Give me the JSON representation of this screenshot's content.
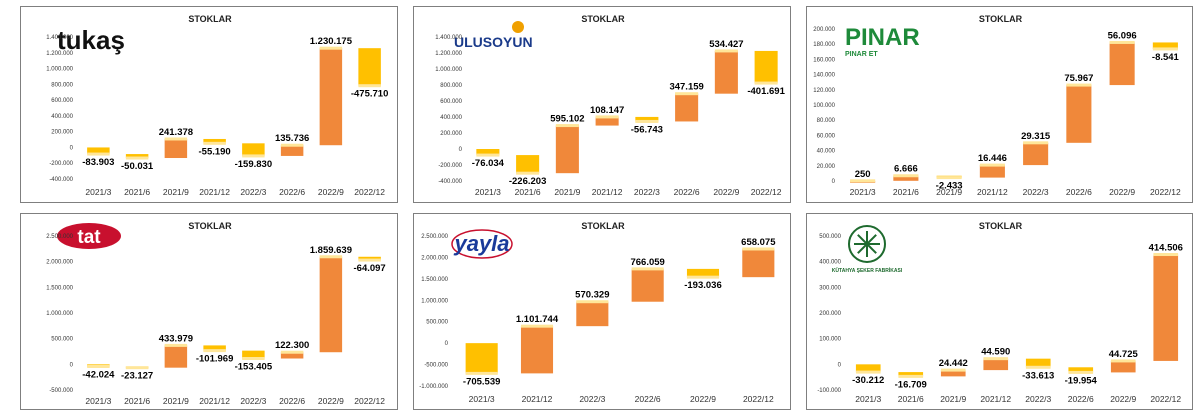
{
  "colors": {
    "up": "#F0883A",
    "down": "#FFC000",
    "cap": "#FFE699",
    "axis": "#BFBFBF"
  },
  "chart_data": [
    {
      "type": "bar",
      "title": "STOKLAR",
      "logo": "tukaş",
      "logo_icon": "tukas-logo-icon",
      "categories": [
        "2021/3",
        "2021/6",
        "2021/9",
        "2021/12",
        "2022/3",
        "2022/6",
        "2022/9",
        "2022/12"
      ],
      "values": [
        -83903,
        -50031,
        241378,
        -55190,
        -159830,
        135736,
        1230175,
        -475710
      ],
      "labels": [
        "-83.903",
        "-50.031",
        "241.378",
        "-55.190",
        "-159.830",
        "135.736",
        "1.230.175",
        "-475.710"
      ],
      "ylim": [
        -400000,
        1400000
      ],
      "yticks": [
        -400000,
        -200000,
        0,
        200000,
        400000,
        600000,
        800000,
        1000000,
        1200000,
        1400000
      ],
      "ytick_labels": [
        "-400.000",
        "-200.000",
        "0",
        "200.000",
        "400.000",
        "600.000",
        "800.000",
        "1.000.000",
        "1.200.000",
        "1.400.000"
      ]
    },
    {
      "type": "bar",
      "title": "STOKLAR",
      "logo": "ULUSOYUN",
      "logo_icon": "ulusoyun-logo-icon",
      "categories": [
        "2021/3",
        "2021/6",
        "2021/9",
        "2021/12",
        "2022/3",
        "2022/6",
        "2022/9",
        "2022/12"
      ],
      "values": [
        -76034,
        -226203,
        595102,
        108147,
        -56743,
        347159,
        534427,
        -401691
      ],
      "labels": [
        "-76.034",
        "-226.203",
        "595.102",
        "108.147",
        "-56.743",
        "347.159",
        "534.427",
        "-401.691"
      ],
      "ylim": [
        -400000,
        1400000
      ],
      "yticks": [
        -400000,
        -200000,
        0,
        200000,
        400000,
        600000,
        800000,
        1000000,
        1200000,
        1400000
      ],
      "ytick_labels": [
        "-400.000",
        "-200.000",
        "0",
        "200.000",
        "400.000",
        "600.000",
        "800.000",
        "1.000.000",
        "1.200.000",
        "1.400.000"
      ]
    },
    {
      "type": "bar",
      "title": "STOKLAR",
      "logo": "PINAR",
      "logo_sub": "PINAR ET",
      "logo_icon": "pinar-logo-icon",
      "categories": [
        "2021/3",
        "2021/6",
        "2021/9",
        "2021/12",
        "2022/3",
        "2022/6",
        "2022/9",
        "2022/12"
      ],
      "values": [
        250,
        6666,
        -2433,
        16446,
        29315,
        75967,
        56096,
        -8541
      ],
      "labels": [
        "250",
        "6.666",
        "-2.433",
        "16.446",
        "29.315",
        "75.967",
        "56.096",
        "-8.541"
      ],
      "ylim": [
        0,
        200000
      ],
      "yticks": [
        0,
        20000,
        40000,
        60000,
        80000,
        100000,
        120000,
        140000,
        160000,
        180000,
        200000
      ],
      "ytick_labels": [
        "0",
        "20.000",
        "40.000",
        "60.000",
        "80.000",
        "100.000",
        "120.000",
        "140.000",
        "160.000",
        "180.000",
        "200.000"
      ]
    },
    {
      "type": "bar",
      "title": "STOKLAR",
      "logo": "tat",
      "logo_icon": "tat-logo-icon",
      "categories": [
        "2021/3",
        "2021/6",
        "2021/9",
        "2021/12",
        "2022/3",
        "2022/6",
        "2022/9",
        "2022/12"
      ],
      "values": [
        -42024,
        -23127,
        433979,
        -101969,
        -153405,
        122300,
        1859639,
        -64097
      ],
      "labels": [
        "-42.024",
        "-23.127",
        "433.979",
        "-101.969",
        "-153.405",
        "122.300",
        "1.859.639",
        "-64.097"
      ],
      "ylim": [
        -500000,
        2500000
      ],
      "yticks": [
        -500000,
        0,
        500000,
        1000000,
        1500000,
        2000000,
        2500000
      ],
      "ytick_labels": [
        "-500.000",
        "0",
        "500.000",
        "1.000.000",
        "1.500.000",
        "2.000.000",
        "2.500.000"
      ]
    },
    {
      "type": "bar",
      "title": "STOKLAR",
      "logo": "yayla",
      "logo_icon": "yayla-logo-icon",
      "categories": [
        "2021/3",
        "2021/12",
        "2022/3",
        "2022/6",
        "2022/9",
        "2022/12"
      ],
      "values": [
        -705539,
        1101744,
        570329,
        766059,
        -193036,
        658075
      ],
      "labels": [
        "-705.539",
        "1.101.744",
        "570.329",
        "766.059",
        "-193.036",
        "658.075"
      ],
      "ylim": [
        -1000000,
        2500000
      ],
      "yticks": [
        -1000000,
        -500000,
        0,
        500000,
        1000000,
        1500000,
        2000000,
        2500000
      ],
      "ytick_labels": [
        "-1.000.000",
        "-500.000",
        "0",
        "500.000",
        "1.000.000",
        "1.500.000",
        "2.000.000",
        "2.500.000"
      ]
    },
    {
      "type": "bar",
      "title": "STOKLAR",
      "logo": "KÜTAHYA ŞEKER FABRİKASI",
      "logo_icon": "kutahya-seker-logo-icon",
      "categories": [
        "2021/3",
        "2021/6",
        "2021/9",
        "2021/12",
        "2022/3",
        "2022/6",
        "2022/9",
        "2022/12"
      ],
      "values": [
        -30212,
        -16709,
        24442,
        44590,
        -33613,
        -19954,
        44725,
        414506
      ],
      "labels": [
        "-30.212",
        "-16.709",
        "24.442",
        "44.590",
        "-33.613",
        "-19.954",
        "44.725",
        "414.506"
      ],
      "ylim": [
        -100000,
        500000
      ],
      "yticks": [
        -100000,
        0,
        100000,
        200000,
        300000,
        400000,
        500000
      ],
      "ytick_labels": [
        "-100.000",
        "0",
        "100.000",
        "200.000",
        "300.000",
        "400.000",
        "500.000"
      ]
    }
  ]
}
